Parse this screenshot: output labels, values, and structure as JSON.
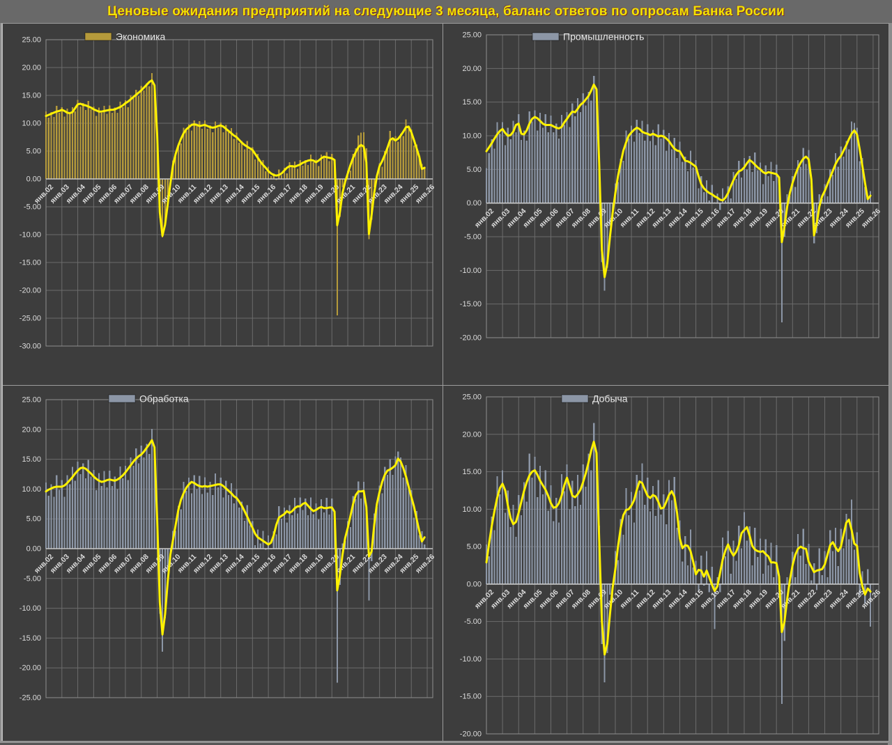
{
  "title": "Ценовые ожидания предприятий на следующие 3 месяца, баланс ответов по опросам Банка России",
  "colors": {
    "title_text": "#f2e300",
    "panel_background": "#3d3d3d",
    "gridline": "#6c6c6c",
    "zero_axis": "#c9c9c9",
    "axis_label_text": "#dcdcdc",
    "legend_text": "#e8e8e8",
    "trend_line": "#fff100",
    "economy_bars": "#b59a3b",
    "industry_bars": "#8c96a6"
  },
  "chart_data": [
    {
      "type": "bar",
      "title": "Экономика",
      "legend_label": "Экономика",
      "legend_position": "top-left",
      "grid": true,
      "bar_color": "#b59a3b",
      "line_color": "#fff100",
      "x_start": "2002-01",
      "x_step_months": 2,
      "x_tick_labels": [
        "янв.02",
        "янв.03",
        "янв.04",
        "янв.05",
        "янв.06",
        "янв.07",
        "янв.08",
        "янв.09",
        "янв.10",
        "янв.11",
        "янв.12",
        "янв.13",
        "янв.14",
        "янв.15",
        "янв.16",
        "янв.17",
        "янв.18",
        "янв.19",
        "янв.20",
        "янв.21",
        "янв.22",
        "янв.23",
        "янв.24",
        "янв.25",
        "янв.26"
      ],
      "ylim": [
        -30,
        25
      ],
      "y_step": 5,
      "bars": [
        12.1,
        11.0,
        12.0,
        11.1,
        13.1,
        11.9,
        12.9,
        11.2,
        12.6,
        11.6,
        12.9,
        12.1,
        14.2,
        13.0,
        13.6,
        12.4,
        14.0,
        12.5,
        13.0,
        11.3,
        12.8,
        11.9,
        13.1,
        11.7,
        13.2,
        11.9,
        12.8,
        11.9,
        13.9,
        12.9,
        14.1,
        12.9,
        15.0,
        14.5,
        16.0,
        14.9,
        16.7,
        15.9,
        17.2,
        16.6,
        19.0,
        16.5,
        8.5,
        -7.0,
        -10.5,
        -8.4,
        -3.6,
        -1.4,
        3.3,
        4.0,
        6.3,
        6.4,
        9.2,
        8.6,
        9.8,
        8.7,
        10.5,
        9.5,
        10.4,
        9.0,
        10.5,
        9.0,
        9.6,
        8.4,
        10.3,
        9.2,
        10.1,
        8.4,
        9.7,
        8.4,
        9.1,
        7.2,
        8.3,
        6.5,
        6.8,
        5.3,
        6.8,
        5.2,
        5.7,
        3.5,
        4.5,
        2.9,
        3.4,
        1.4,
        2.2,
        0.5,
        1.0,
        -0.2,
        1.7,
        0.7,
        2.0,
        1.0,
        3.0,
        2.1,
        3.1,
        1.8,
        3.4,
        2.4,
        3.4,
        2.5,
        4.4,
        3.0,
        3.5,
        2.3,
        4.4,
        3.8,
        4.8,
        3.2,
        4.5,
        2.9,
        -24.5,
        -6.8,
        -1.5,
        -0.8,
        1.5,
        1.5,
        4.5,
        5.5,
        7.8,
        8.3,
        8.4,
        5.5,
        -10.8,
        -7.3,
        -1.5,
        0.2,
        2.8,
        2.2,
        5.0,
        5.4,
        8.6,
        7.0,
        7.7,
        6.7,
        8.1,
        7.7,
        10.7,
        9.1,
        8.9,
        6.0,
        6.2,
        3.8,
        2.7,
        2.2
      ],
      "line": [
        11.3,
        11.5,
        11.7,
        11.9,
        12.1,
        12.2,
        12.4,
        12.2,
        11.9,
        11.8,
        12.0,
        12.7,
        13.4,
        13.5,
        13.3,
        13.2,
        13.0,
        12.8,
        12.5,
        12.3,
        12.1,
        12.1,
        12.2,
        12.3,
        12.4,
        12.4,
        12.5,
        12.7,
        12.9,
        13.2,
        13.6,
        13.9,
        14.3,
        14.7,
        15.1,
        15.5,
        15.9,
        16.4,
        16.9,
        17.4,
        17.7,
        16.8,
        8.0,
        -6.0,
        -10.2,
        -8.2,
        -4.5,
        -0.8,
        2.5,
        4.5,
        6.0,
        7.2,
        8.2,
        8.9,
        9.3,
        9.7,
        9.8,
        9.7,
        9.5,
        9.6,
        9.7,
        9.5,
        9.3,
        9.2,
        9.3,
        9.5,
        9.6,
        9.4,
        9.0,
        8.6,
        8.2,
        7.8,
        7.5,
        7.0,
        6.5,
        6.1,
        5.8,
        5.5,
        5.2,
        4.5,
        3.8,
        3.1,
        2.5,
        2.0,
        1.4,
        1.0,
        0.7,
        0.6,
        0.7,
        1.0,
        1.5,
        2.0,
        2.3,
        2.3,
        2.2,
        2.4,
        2.6,
        2.9,
        3.1,
        3.3,
        3.4,
        3.3,
        3.0,
        3.3,
        3.7,
        4.0,
        3.9,
        3.8,
        3.7,
        3.4,
        -8.3,
        -6.0,
        -2.5,
        -0.5,
        1.0,
        2.5,
        3.8,
        4.8,
        5.7,
        6.1,
        5.8,
        3.0,
        -9.9,
        -6.5,
        -2.5,
        0.5,
        2.3,
        3.2,
        4.3,
        5.6,
        7.0,
        7.3,
        6.9,
        7.2,
        7.8,
        8.5,
        9.3,
        9.4,
        8.4,
        7.0,
        5.5,
        4.0,
        1.8,
        2.0
      ]
    },
    {
      "type": "bar",
      "title": "Промышленность",
      "legend_label": "Промышленность",
      "legend_position": "top-left",
      "grid": true,
      "bar_color": "#8c96a6",
      "line_color": "#fff100",
      "x_start": "2002-01",
      "x_step_months": 2,
      "x_tick_labels": [
        "янв.02",
        "янв.03",
        "янв.04",
        "янв.05",
        "янв.06",
        "янв.07",
        "янв.08",
        "янв.09",
        "янв.10",
        "янв.11",
        "янв.12",
        "янв.13",
        "янв.14",
        "янв.15",
        "янв.16",
        "янв.17",
        "янв.18",
        "янв.19",
        "янв.20",
        "янв.21",
        "янв.22",
        "янв.23",
        "янв.24",
        "янв.25",
        "янв.26"
      ],
      "ylim": [
        -20,
        25
      ],
      "y_step": 5,
      "bars": [
        5.2,
        7.4,
        9.5,
        8.1,
        12.0,
        10.3,
        12.0,
        8.6,
        11.2,
        9.5,
        12.2,
        10.5,
        13.2,
        9.4,
        10.8,
        9.3,
        13.6,
        12.1,
        13.8,
        10.8,
        13.4,
        11.2,
        13.2,
        10.5,
        13.0,
        10.5,
        11.8,
        9.6,
        13.1,
        11.6,
        13.5,
        11.3,
        14.8,
        12.9,
        15.6,
        13.5,
        16.3,
        14.5,
        16.5,
        15.2,
        18.9,
        16.5,
        7.0,
        -8.8,
        -13.0,
        -9.6,
        -3.4,
        -2.6,
        2.9,
        3.1,
        6.6,
        6.3,
        10.8,
        9.6,
        11.5,
        9.1,
        12.4,
        10.4,
        12.2,
        9.3,
        11.7,
        9.2,
        10.9,
        8.6,
        11.7,
        9.6,
        10.9,
        7.8,
        10.4,
        8.0,
        9.7,
        6.7,
        9.1,
        6.1,
        6.9,
        4.7,
        7.8,
        5.3,
        6.4,
        2.2,
        4.0,
        1.6,
        3.4,
        0.4,
        2.7,
        0.1,
        1.4,
        -1.0,
        2.2,
        0.4,
        2.5,
        0.7,
        4.6,
        3.6,
        6.3,
        3.8,
        6.7,
        5.0,
        7.0,
        4.6,
        7.5,
        4.9,
        6.0,
        2.8,
        5.6,
        4.0,
        6.1,
        3.3,
        5.7,
        2.9,
        -17.7,
        -5.0,
        1.3,
        1.1,
        4.0,
        2.4,
        6.4,
        5.4,
        8.2,
        5.8,
        7.9,
        2.6,
        -6.0,
        -4.5,
        1.3,
        0.6,
        2.8,
        1.0,
        5.0,
        4.2,
        7.4,
        5.4,
        8.4,
        6.9,
        9.2,
        8.0,
        12.1,
        11.9,
        11.2,
        6.2,
        6.7,
        2.4,
        0.9,
        1.8
      ],
      "line": [
        7.7,
        8.3,
        8.9,
        9.6,
        10.2,
        10.7,
        11.0,
        10.4,
        10.0,
        10.1,
        10.6,
        11.6,
        11.8,
        10.3,
        10.2,
        10.8,
        11.8,
        12.5,
        12.8,
        12.6,
        12.2,
        11.8,
        11.6,
        11.6,
        11.6,
        11.4,
        11.2,
        11.1,
        11.3,
        12.0,
        12.5,
        13.1,
        13.6,
        13.5,
        14.0,
        14.6,
        14.9,
        15.4,
        15.9,
        16.7,
        17.6,
        16.9,
        6.0,
        -7.0,
        -11.0,
        -9.0,
        -5.0,
        -1.5,
        1.5,
        4.0,
        6.0,
        7.8,
        9.0,
        10.0,
        10.5,
        10.9,
        11.2,
        11.0,
        10.6,
        10.4,
        10.3,
        10.1,
        10.3,
        10.1,
        9.9,
        10.0,
        9.9,
        9.6,
        9.2,
        8.6,
        8.1,
        7.8,
        7.7,
        7.0,
        6.3,
        6.2,
        6.0,
        5.7,
        5.4,
        4.0,
        2.8,
        2.2,
        1.8,
        1.5,
        1.3,
        1.0,
        0.8,
        0.5,
        0.4,
        0.8,
        1.5,
        2.5,
        3.4,
        4.2,
        4.7,
        4.9,
        5.3,
        5.9,
        6.4,
        6.1,
        5.7,
        5.3,
        5.0,
        4.6,
        4.4,
        4.6,
        4.5,
        4.4,
        4.3,
        3.8,
        -5.8,
        -3.5,
        -0.5,
        1.5,
        3.0,
        4.2,
        5.2,
        6.0,
        6.6,
        6.9,
        6.5,
        3.5,
        -4.8,
        -3.0,
        -0.5,
        1.0,
        1.8,
        2.8,
        3.8,
        4.8,
        5.8,
        6.5,
        7.0,
        7.8,
        8.6,
        9.5,
        10.3,
        10.8,
        10.2,
        8.0,
        5.5,
        3.0,
        0.6,
        1.1
      ]
    },
    {
      "type": "bar",
      "title": "Обработка",
      "legend_label": "Обработка",
      "legend_position": "top-left",
      "grid": true,
      "bar_color": "#8c96a6",
      "line_color": "#fff100",
      "x_start": "2002-01",
      "x_step_months": 2,
      "x_tick_labels": [
        "янв.02",
        "янв.03",
        "янв.04",
        "янв.05",
        "янв.06",
        "янв.07",
        "янв.08",
        "янв.09",
        "янв.10",
        "янв.11",
        "янв.12",
        "янв.13",
        "янв.14",
        "янв.15",
        "янв.16",
        "янв.17",
        "янв.18",
        "янв.19",
        "янв.20",
        "янв.21",
        "янв.22",
        "янв.23",
        "янв.24",
        "янв.25",
        "янв.26"
      ],
      "ylim": [
        -25,
        25
      ],
      "y_step": 5,
      "bars": [
        11.1,
        8.9,
        10.8,
        8.7,
        12.3,
        9.9,
        11.5,
        8.7,
        12.3,
        10.8,
        13.7,
        11.4,
        14.6,
        12.5,
        14.3,
        11.8,
        14.9,
        12.1,
        13.2,
        9.8,
        12.7,
        10.5,
        13.0,
        10.3,
        13.1,
        10.5,
        12.1,
        10.0,
        13.8,
        11.8,
        13.9,
        11.5,
        15.3,
        13.9,
        16.8,
        14.3,
        17.3,
        15.3,
        17.6,
        15.9,
        20.1,
        16.5,
        6.1,
        -10.9,
        -17.3,
        -11.7,
        -3.8,
        -2.2,
        3.0,
        3.0,
        7.2,
        6.6,
        11.2,
        9.7,
        11.9,
        9.3,
        12.3,
        10.0,
        12.2,
        9.2,
        12.0,
        9.4,
        11.2,
        9.0,
        12.6,
        10.3,
        11.9,
        8.6,
        11.4,
        9.0,
        11.0,
        7.6,
        10.0,
        6.9,
        7.9,
        4.7,
        7.3,
        3.9,
        4.6,
        0.6,
        3.2,
        0.9,
        3.0,
        -0.2,
        2.2,
        0.0,
        2.9,
        2.4,
        7.1,
        5.0,
        6.9,
        4.4,
        7.3,
        5.6,
        8.5,
        5.9,
        8.6,
        6.5,
        8.4,
        5.6,
        8.6,
        5.8,
        7.6,
        4.9,
        8.3,
        6.1,
        8.5,
        5.7,
        8.4,
        5.2,
        -22.5,
        -6.1,
        0.9,
        1.3,
        4.6,
        3.6,
        8.8,
        8.3,
        11.3,
        8.4,
        11.2,
        6.0,
        -8.7,
        -2.1,
        5.9,
        7.0,
        10.6,
        9.3,
        13.7,
        12.4,
        15.0,
        12.4,
        15.5,
        16.3,
        15.3,
        11.9,
        14.0,
        9.9,
        9.8,
        5.2,
        6.3,
        2.3,
        2.9,
        0.7
      ],
      "line": [
        9.6,
        9.9,
        10.1,
        10.3,
        10.4,
        10.4,
        10.4,
        10.6,
        11.0,
        11.5,
        12.0,
        12.6,
        13.1,
        13.5,
        13.6,
        13.4,
        13.0,
        12.6,
        12.1,
        11.7,
        11.4,
        11.2,
        11.3,
        11.5,
        11.6,
        11.5,
        11.4,
        11.6,
        11.9,
        12.3,
        12.8,
        13.4,
        14.0,
        14.6,
        15.1,
        15.5,
        15.8,
        16.3,
        16.9,
        17.5,
        18.2,
        17.0,
        5.0,
        -9.0,
        -14.4,
        -11.0,
        -5.5,
        -1.0,
        1.5,
        4.0,
        6.5,
        8.2,
        9.3,
        10.2,
        10.8,
        11.2,
        11.0,
        10.7,
        10.5,
        10.4,
        10.5,
        10.4,
        10.5,
        10.6,
        10.7,
        10.8,
        10.8,
        10.5,
        10.1,
        9.7,
        9.3,
        8.8,
        8.5,
        7.9,
        7.2,
        6.3,
        5.4,
        4.4,
        3.5,
        2.5,
        1.9,
        1.6,
        1.3,
        1.0,
        0.7,
        1.0,
        2.2,
        4.0,
        5.2,
        5.5,
        5.8,
        6.3,
        6.0,
        6.3,
        6.8,
        7.1,
        7.1,
        7.5,
        7.7,
        7.2,
        6.7,
        6.3,
        6.5,
        6.8,
        7.0,
        6.8,
        6.8,
        6.9,
        6.9,
        6.2,
        -7.0,
        -4.5,
        -1.0,
        1.8,
        3.5,
        5.5,
        7.5,
        9.0,
        9.6,
        9.6,
        9.7,
        7.0,
        -1.3,
        -0.5,
        4.0,
        7.5,
        9.5,
        11.2,
        12.4,
        13.1,
        13.3,
        13.6,
        14.0,
        15.1,
        14.6,
        13.5,
        12.1,
        10.4,
        8.7,
        7.1,
        5.0,
        3.0,
        1.2,
        1.9
      ]
    },
    {
      "type": "bar",
      "title": "Добыча",
      "legend_label": "Добыча",
      "legend_position": "top-left",
      "grid": true,
      "bar_color": "#8c96a6",
      "line_color": "#fff100",
      "x_start": "2002-01",
      "x_step_months": 2,
      "x_tick_labels": [
        "янв.02",
        "янв.03",
        "янв.04",
        "янв.05",
        "янв.06",
        "янв.07",
        "янв.08",
        "янв.09",
        "янв.10",
        "янв.11",
        "янв.12",
        "янв.13",
        "янв.14",
        "янв.15",
        "янв.16",
        "янв.17",
        "янв.18",
        "янв.19",
        "янв.20",
        "янв.21",
        "янв.22",
        "янв.23",
        "янв.24",
        "янв.25",
        "янв.26"
      ],
      "ylim": [
        -20,
        25
      ],
      "y_step": 5,
      "bars": [
        5.3,
        3.7,
        9.0,
        7.2,
        14.4,
        12.0,
        15.2,
        9.5,
        12.5,
        7.6,
        10.6,
        6.3,
        11.9,
        9.2,
        13.6,
        11.0,
        17.4,
        14.2,
        17.0,
        11.6,
        15.8,
        12.0,
        15.2,
        9.8,
        13.2,
        8.4,
        11.5,
        8.2,
        14.7,
        12.4,
        16.0,
        10.0,
        13.8,
        10.4,
        14.6,
        10.6,
        16.0,
        13.0,
        17.4,
        15.2,
        21.5,
        16.7,
        7.8,
        -8.0,
        -13.1,
        -9.2,
        -1.4,
        -2.5,
        4.4,
        3.2,
        8.7,
        6.6,
        12.8,
        9.2,
        12.3,
        8.2,
        14.6,
        12.5,
        16.1,
        10.6,
        14.2,
        9.7,
        13.1,
        9.1,
        13.9,
        9.3,
        12.0,
        8.0,
        13.9,
        11.2,
        14.3,
        7.5,
        8.5,
        3.0,
        6.4,
        2.5,
        7.3,
        2.2,
        3.1,
        -1.1,
        3.8,
        -0.2,
        4.4,
        -1.1,
        2.3,
        -6.0,
        0.9,
        -1.1,
        6.2,
        3.7,
        7.1,
        1.4,
        5.8,
        3.1,
        7.8,
        4.8,
        9.6,
        5.8,
        7.7,
        2.5,
        7.5,
        3.6,
        6.1,
        1.4,
        6.0,
        2.5,
        5.5,
        0.9,
        5.2,
        -0.8,
        -16.0,
        -7.6,
        0.9,
        -0.3,
        4.3,
        0.9,
        6.7,
        3.8,
        7.4,
        2.7,
        5.4,
        0.5,
        2.8,
        -0.8,
        4.8,
        1.2,
        4.4,
        0.9,
        7.2,
        4.4,
        7.5,
        2.4,
        7.4,
        4.8,
        9.4,
        6.0,
        11.3,
        4.6,
        6.9,
        -1.5,
        1.7,
        -2.6,
        2.0,
        -5.7
      ],
      "line": [
        2.9,
        5.5,
        7.8,
        9.8,
        11.5,
        12.8,
        13.4,
        12.5,
        10.5,
        8.8,
        8.0,
        8.3,
        9.5,
        11.0,
        12.4,
        13.6,
        14.5,
        15.0,
        15.2,
        14.6,
        13.8,
        13.2,
        12.6,
        11.8,
        10.8,
        10.2,
        10.3,
        10.8,
        11.8,
        13.2,
        14.2,
        13.0,
        11.8,
        11.6,
        12.0,
        12.6,
        13.6,
        14.8,
        16.2,
        17.8,
        19.0,
        17.5,
        6.0,
        -5.0,
        -9.4,
        -8.0,
        -4.0,
        -0.5,
        2.0,
        5.0,
        7.5,
        9.2,
        9.9,
        10.0,
        10.5,
        11.2,
        12.6,
        13.7,
        13.5,
        12.6,
        11.8,
        11.5,
        11.9,
        11.7,
        11.0,
        10.1,
        10.2,
        11.0,
        11.9,
        12.4,
        11.7,
        9.5,
        6.1,
        4.8,
        5.2,
        5.1,
        4.4,
        3.0,
        1.3,
        1.9,
        1.8,
        1.0,
        1.8,
        0.9,
        -0.1,
        -0.9,
        -0.3,
        1.5,
        3.3,
        4.5,
        5.3,
        4.4,
        3.8,
        4.3,
        5.2,
        6.8,
        7.2,
        7.6,
        6.5,
        5.1,
        4.6,
        4.4,
        4.3,
        4.4,
        4.0,
        3.7,
        2.9,
        2.9,
        2.8,
        1.0,
        -6.4,
        -5.0,
        -2.0,
        0.5,
        2.5,
        3.9,
        4.7,
        5.0,
        4.8,
        4.7,
        3.0,
        2.3,
        1.6,
        1.8,
        1.9,
        2.0,
        2.6,
        3.9,
        5.2,
        5.6,
        4.9,
        4.4,
        5.0,
        6.6,
        8.2,
        8.6,
        7.2,
        5.4,
        5.1,
        1.5,
        -0.3,
        -1.4,
        -0.6,
        -1.0
      ]
    }
  ]
}
